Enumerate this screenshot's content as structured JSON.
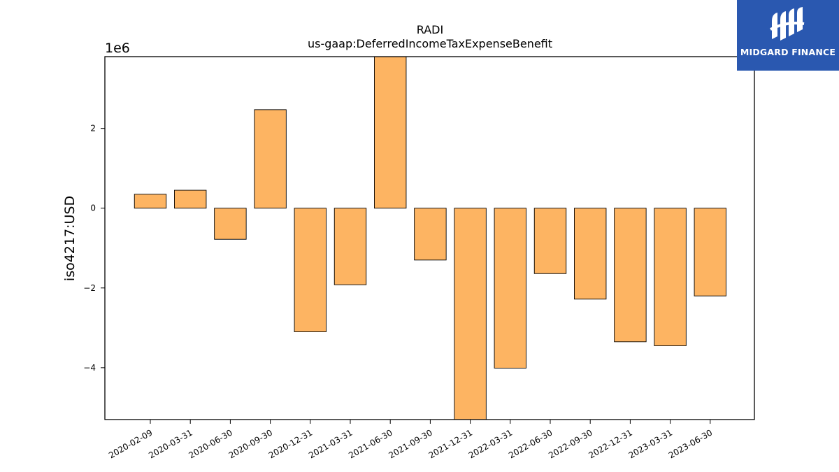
{
  "logo": {
    "text": "MIDGARD FINANCE",
    "background": "#2a58b0"
  },
  "chart_data": {
    "type": "bar",
    "title": "RADI",
    "subtitle": "us-gaap:DeferredIncomeTaxExpenseBenefit",
    "xlabel": "",
    "ylabel": "iso4217:USD",
    "y_offset_label": "1e6",
    "y_scale": 1000000,
    "ylim": [
      -5.3,
      3.8
    ],
    "yticks": [
      -4,
      -2,
      0,
      2
    ],
    "ytick_labels": [
      "−4",
      "−2",
      "0",
      "2"
    ],
    "categories": [
      "2020-02-09",
      "2020-03-31",
      "2020-06-30",
      "2020-09-30",
      "2020-12-31",
      "2021-03-31",
      "2021-06-30",
      "2021-09-30",
      "2021-12-31",
      "2022-03-31",
      "2022-06-30",
      "2022-09-30",
      "2022-12-31",
      "2023-03-31",
      "2023-06-30"
    ],
    "values": [
      0.35,
      0.45,
      -0.78,
      2.47,
      -3.1,
      -1.92,
      3.8,
      -1.3,
      -5.3,
      -4.01,
      -1.64,
      -2.28,
      -3.35,
      -3.45,
      -2.2
    ],
    "bar_color": "#fdb462",
    "grid": false
  }
}
